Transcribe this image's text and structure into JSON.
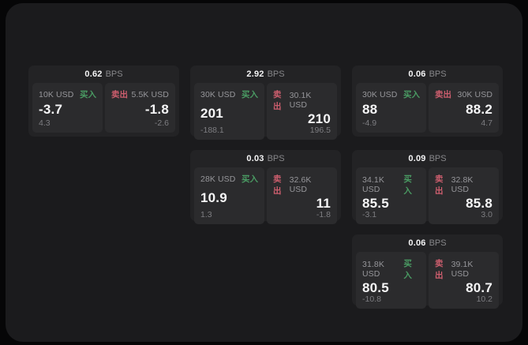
{
  "labels": {
    "bps": "BPS",
    "buy": "买入",
    "sell": "卖出"
  },
  "colors": {
    "page_bg": "#060607",
    "surface_bg": "#1b1b1d",
    "card_bg": "#232325",
    "panel_bg": "#2b2b2d",
    "text_primary": "#f4f4f5",
    "text_muted": "#87878a",
    "buy_green": "#4a9b63",
    "sell_red": "#cd5e6e"
  },
  "cards": [
    {
      "bps_value": "0.62",
      "row": 1,
      "col": 1,
      "buy": {
        "amount": "10K USD",
        "price": "-3.7",
        "sub": "4.3"
      },
      "sell": {
        "amount": "5.5K USD",
        "price": "-1.8",
        "sub": "-2.6"
      }
    },
    {
      "bps_value": "2.92",
      "row": 1,
      "col": 2,
      "buy": {
        "amount": "30K USD",
        "price": "201",
        "sub": "-188.1"
      },
      "sell": {
        "amount": "30.1K USD",
        "price": "210",
        "sub": "196.5"
      }
    },
    {
      "bps_value": "0.06",
      "row": 1,
      "col": 3,
      "buy": {
        "amount": "30K USD",
        "price": "88",
        "sub": "-4.9"
      },
      "sell": {
        "amount": "30K USD",
        "price": "88.2",
        "sub": "4.7"
      }
    },
    {
      "bps_value": "0.03",
      "row": 2,
      "col": 2,
      "buy": {
        "amount": "28K USD",
        "price": "10.9",
        "sub": "1.3"
      },
      "sell": {
        "amount": "32.6K USD",
        "price": "11",
        "sub": "-1.8"
      }
    },
    {
      "bps_value": "0.09",
      "row": 2,
      "col": 3,
      "buy": {
        "amount": "34.1K USD",
        "price": "85.5",
        "sub": "-3.1"
      },
      "sell": {
        "amount": "32.8K USD",
        "price": "85.8",
        "sub": "3.0"
      }
    },
    {
      "bps_value": "0.06",
      "row": 3,
      "col": 3,
      "buy": {
        "amount": "31.8K USD",
        "price": "80.5",
        "sub": "-10.8"
      },
      "sell": {
        "amount": "39.1K USD",
        "price": "80.7",
        "sub": "10.2"
      }
    }
  ]
}
